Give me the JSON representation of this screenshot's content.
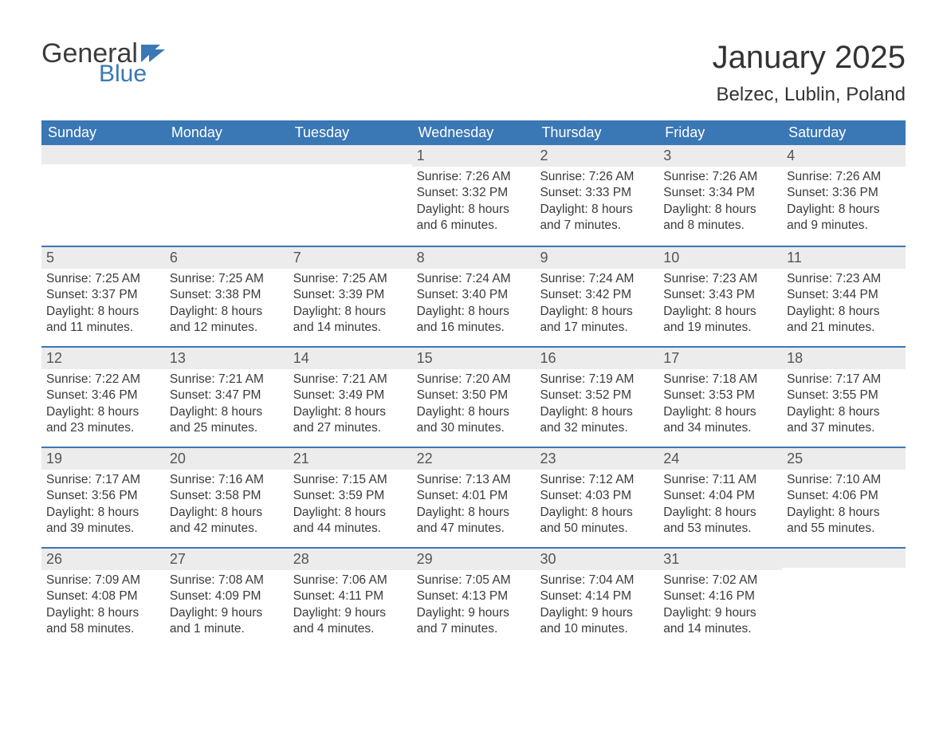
{
  "brand": {
    "general": "General",
    "blue": "Blue"
  },
  "title": "January 2025",
  "location": "Belzec, Lublin, Poland",
  "colors": {
    "header_bg": "#3a77b5",
    "header_text": "#ffffff",
    "band_bg": "#ececec",
    "border": "#3a77b5",
    "body_text": "#3a3a3a",
    "title_text": "#333333"
  },
  "typography": {
    "title_fontsize": 40,
    "subtitle_fontsize": 24,
    "dayheader_fontsize": 18,
    "daynum_fontsize": 18,
    "cell_fontsize": 15.5
  },
  "day_headers": [
    "Sunday",
    "Monday",
    "Tuesday",
    "Wednesday",
    "Thursday",
    "Friday",
    "Saturday"
  ],
  "weeks": [
    [
      null,
      null,
      null,
      {
        "n": "1",
        "sunrise": "Sunrise: 7:26 AM",
        "sunset": "Sunset: 3:32 PM",
        "d1": "Daylight: 8 hours",
        "d2": "and 6 minutes."
      },
      {
        "n": "2",
        "sunrise": "Sunrise: 7:26 AM",
        "sunset": "Sunset: 3:33 PM",
        "d1": "Daylight: 8 hours",
        "d2": "and 7 minutes."
      },
      {
        "n": "3",
        "sunrise": "Sunrise: 7:26 AM",
        "sunset": "Sunset: 3:34 PM",
        "d1": "Daylight: 8 hours",
        "d2": "and 8 minutes."
      },
      {
        "n": "4",
        "sunrise": "Sunrise: 7:26 AM",
        "sunset": "Sunset: 3:36 PM",
        "d1": "Daylight: 8 hours",
        "d2": "and 9 minutes."
      }
    ],
    [
      {
        "n": "5",
        "sunrise": "Sunrise: 7:25 AM",
        "sunset": "Sunset: 3:37 PM",
        "d1": "Daylight: 8 hours",
        "d2": "and 11 minutes."
      },
      {
        "n": "6",
        "sunrise": "Sunrise: 7:25 AM",
        "sunset": "Sunset: 3:38 PM",
        "d1": "Daylight: 8 hours",
        "d2": "and 12 minutes."
      },
      {
        "n": "7",
        "sunrise": "Sunrise: 7:25 AM",
        "sunset": "Sunset: 3:39 PM",
        "d1": "Daylight: 8 hours",
        "d2": "and 14 minutes."
      },
      {
        "n": "8",
        "sunrise": "Sunrise: 7:24 AM",
        "sunset": "Sunset: 3:40 PM",
        "d1": "Daylight: 8 hours",
        "d2": "and 16 minutes."
      },
      {
        "n": "9",
        "sunrise": "Sunrise: 7:24 AM",
        "sunset": "Sunset: 3:42 PM",
        "d1": "Daylight: 8 hours",
        "d2": "and 17 minutes."
      },
      {
        "n": "10",
        "sunrise": "Sunrise: 7:23 AM",
        "sunset": "Sunset: 3:43 PM",
        "d1": "Daylight: 8 hours",
        "d2": "and 19 minutes."
      },
      {
        "n": "11",
        "sunrise": "Sunrise: 7:23 AM",
        "sunset": "Sunset: 3:44 PM",
        "d1": "Daylight: 8 hours",
        "d2": "and 21 minutes."
      }
    ],
    [
      {
        "n": "12",
        "sunrise": "Sunrise: 7:22 AM",
        "sunset": "Sunset: 3:46 PM",
        "d1": "Daylight: 8 hours",
        "d2": "and 23 minutes."
      },
      {
        "n": "13",
        "sunrise": "Sunrise: 7:21 AM",
        "sunset": "Sunset: 3:47 PM",
        "d1": "Daylight: 8 hours",
        "d2": "and 25 minutes."
      },
      {
        "n": "14",
        "sunrise": "Sunrise: 7:21 AM",
        "sunset": "Sunset: 3:49 PM",
        "d1": "Daylight: 8 hours",
        "d2": "and 27 minutes."
      },
      {
        "n": "15",
        "sunrise": "Sunrise: 7:20 AM",
        "sunset": "Sunset: 3:50 PM",
        "d1": "Daylight: 8 hours",
        "d2": "and 30 minutes."
      },
      {
        "n": "16",
        "sunrise": "Sunrise: 7:19 AM",
        "sunset": "Sunset: 3:52 PM",
        "d1": "Daylight: 8 hours",
        "d2": "and 32 minutes."
      },
      {
        "n": "17",
        "sunrise": "Sunrise: 7:18 AM",
        "sunset": "Sunset: 3:53 PM",
        "d1": "Daylight: 8 hours",
        "d2": "and 34 minutes."
      },
      {
        "n": "18",
        "sunrise": "Sunrise: 7:17 AM",
        "sunset": "Sunset: 3:55 PM",
        "d1": "Daylight: 8 hours",
        "d2": "and 37 minutes."
      }
    ],
    [
      {
        "n": "19",
        "sunrise": "Sunrise: 7:17 AM",
        "sunset": "Sunset: 3:56 PM",
        "d1": "Daylight: 8 hours",
        "d2": "and 39 minutes."
      },
      {
        "n": "20",
        "sunrise": "Sunrise: 7:16 AM",
        "sunset": "Sunset: 3:58 PM",
        "d1": "Daylight: 8 hours",
        "d2": "and 42 minutes."
      },
      {
        "n": "21",
        "sunrise": "Sunrise: 7:15 AM",
        "sunset": "Sunset: 3:59 PM",
        "d1": "Daylight: 8 hours",
        "d2": "and 44 minutes."
      },
      {
        "n": "22",
        "sunrise": "Sunrise: 7:13 AM",
        "sunset": "Sunset: 4:01 PM",
        "d1": "Daylight: 8 hours",
        "d2": "and 47 minutes."
      },
      {
        "n": "23",
        "sunrise": "Sunrise: 7:12 AM",
        "sunset": "Sunset: 4:03 PM",
        "d1": "Daylight: 8 hours",
        "d2": "and 50 minutes."
      },
      {
        "n": "24",
        "sunrise": "Sunrise: 7:11 AM",
        "sunset": "Sunset: 4:04 PM",
        "d1": "Daylight: 8 hours",
        "d2": "and 53 minutes."
      },
      {
        "n": "25",
        "sunrise": "Sunrise: 7:10 AM",
        "sunset": "Sunset: 4:06 PM",
        "d1": "Daylight: 8 hours",
        "d2": "and 55 minutes."
      }
    ],
    [
      {
        "n": "26",
        "sunrise": "Sunrise: 7:09 AM",
        "sunset": "Sunset: 4:08 PM",
        "d1": "Daylight: 8 hours",
        "d2": "and 58 minutes."
      },
      {
        "n": "27",
        "sunrise": "Sunrise: 7:08 AM",
        "sunset": "Sunset: 4:09 PM",
        "d1": "Daylight: 9 hours",
        "d2": "and 1 minute."
      },
      {
        "n": "28",
        "sunrise": "Sunrise: 7:06 AM",
        "sunset": "Sunset: 4:11 PM",
        "d1": "Daylight: 9 hours",
        "d2": "and 4 minutes."
      },
      {
        "n": "29",
        "sunrise": "Sunrise: 7:05 AM",
        "sunset": "Sunset: 4:13 PM",
        "d1": "Daylight: 9 hours",
        "d2": "and 7 minutes."
      },
      {
        "n": "30",
        "sunrise": "Sunrise: 7:04 AM",
        "sunset": "Sunset: 4:14 PM",
        "d1": "Daylight: 9 hours",
        "d2": "and 10 minutes."
      },
      {
        "n": "31",
        "sunrise": "Sunrise: 7:02 AM",
        "sunset": "Sunset: 4:16 PM",
        "d1": "Daylight: 9 hours",
        "d2": "and 14 minutes."
      },
      null
    ]
  ]
}
